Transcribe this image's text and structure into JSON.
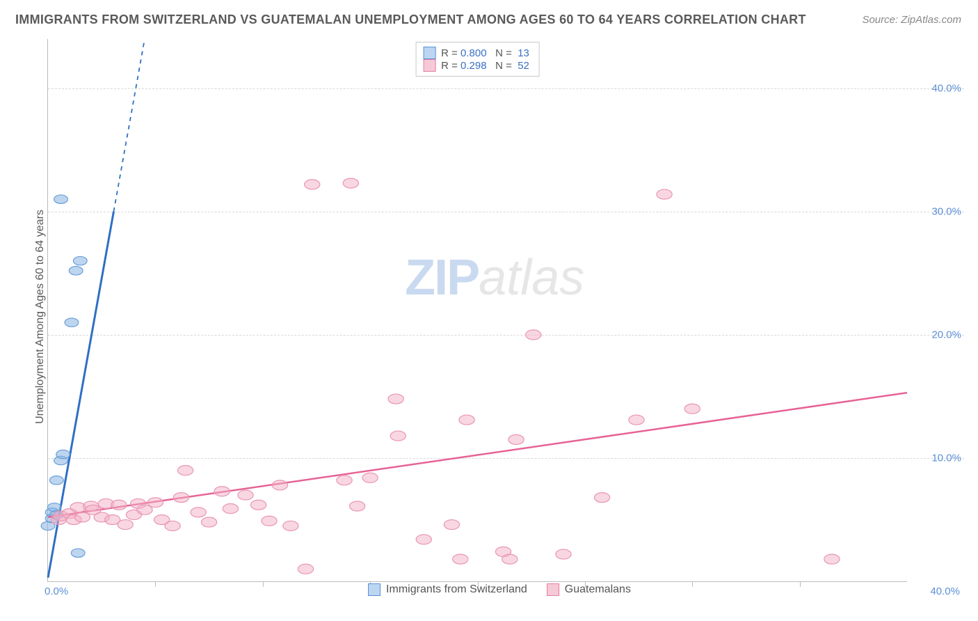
{
  "title": "IMMIGRANTS FROM SWITZERLAND VS GUATEMALAN UNEMPLOYMENT AMONG AGES 60 TO 64 YEARS CORRELATION CHART",
  "source": "Source: ZipAtlas.com",
  "ylabel": "Unemployment Among Ages 60 to 64 years",
  "watermark_zip": "ZIP",
  "watermark_atlas": "atlas",
  "chart": {
    "type": "scatter",
    "x_min": 0,
    "x_max": 40,
    "y_min": 0,
    "y_max": 44,
    "x_tick_min_label": "0.0%",
    "x_tick_max_label": "40.0%",
    "y_ticks": [
      10,
      20,
      30,
      40
    ],
    "y_tick_labels": [
      "10.0%",
      "20.0%",
      "30.0%",
      "40.0%"
    ],
    "x_tick_marks": [
      5,
      10,
      15,
      20,
      25,
      30,
      35
    ],
    "grid_color": "#d8d8d8",
    "axis_color": "#bbbbbb",
    "background": "#ffffff"
  },
  "legend_top": [
    {
      "swatch_fill": "#bcd6f2",
      "swatch_border": "#5a8fd6",
      "r_label": "R = ",
      "r_val": "0.800",
      "n_label": "   N =  ",
      "n_val": "13"
    },
    {
      "swatch_fill": "#f6c9d6",
      "swatch_border": "#e37fa2",
      "r_label": "R = ",
      "r_val": "0.298",
      "n_label": "   N =  ",
      "n_val": "52"
    }
  ],
  "legend_bottom": [
    {
      "swatch_fill": "#bcd6f2",
      "swatch_border": "#5a8fd6",
      "label": "Immigrants from Switzerland"
    },
    {
      "swatch_fill": "#f6c9d6",
      "swatch_border": "#e37fa2",
      "label": "Guatemalans"
    }
  ],
  "series": [
    {
      "name": "swiss",
      "marker_fill": "rgba(137,179,226,0.55)",
      "marker_stroke": "#6a9fd8",
      "marker_r": 8,
      "line_color": "#2f6fc4",
      "line_width": 3,
      "line_dash_after_y": 30,
      "trend": {
        "x1": 0,
        "y1": 0.3,
        "x2": 4.5,
        "y2": 44
      },
      "points": [
        [
          0.0,
          4.5
        ],
        [
          0.2,
          5.1
        ],
        [
          0.2,
          5.6
        ],
        [
          0.3,
          6.0
        ],
        [
          0.4,
          5.4
        ],
        [
          0.4,
          8.2
        ],
        [
          0.6,
          9.8
        ],
        [
          0.7,
          10.3
        ],
        [
          1.1,
          21.0
        ],
        [
          1.3,
          25.2
        ],
        [
          1.5,
          26.0
        ],
        [
          0.6,
          31.0
        ],
        [
          1.4,
          2.3
        ]
      ]
    },
    {
      "name": "guatemalan",
      "marker_fill": "rgba(242,176,197,0.5)",
      "marker_stroke": "#e995b3",
      "marker_r": 9,
      "line_color": "#e66395",
      "line_width": 2.5,
      "trend": {
        "x1": 0,
        "y1": 5.2,
        "x2": 40,
        "y2": 15.3
      },
      "points": [
        [
          0.5,
          5.0
        ],
        [
          0.6,
          5.3
        ],
        [
          1.0,
          5.5
        ],
        [
          1.2,
          5.0
        ],
        [
          1.4,
          6.0
        ],
        [
          1.6,
          5.2
        ],
        [
          2.0,
          6.1
        ],
        [
          2.1,
          5.8
        ],
        [
          2.5,
          5.2
        ],
        [
          2.7,
          6.3
        ],
        [
          3.0,
          5.0
        ],
        [
          3.3,
          6.2
        ],
        [
          3.6,
          4.6
        ],
        [
          4.0,
          5.4
        ],
        [
          4.2,
          6.3
        ],
        [
          4.5,
          5.8
        ],
        [
          5.0,
          6.4
        ],
        [
          5.3,
          5.0
        ],
        [
          5.8,
          4.5
        ],
        [
          6.2,
          6.8
        ],
        [
          6.4,
          9.0
        ],
        [
          7.0,
          5.6
        ],
        [
          7.5,
          4.8
        ],
        [
          8.1,
          7.3
        ],
        [
          8.5,
          5.9
        ],
        [
          9.2,
          7.0
        ],
        [
          9.8,
          6.2
        ],
        [
          10.3,
          4.9
        ],
        [
          10.8,
          7.8
        ],
        [
          11.3,
          4.5
        ],
        [
          12.0,
          1.0
        ],
        [
          12.3,
          32.2
        ],
        [
          13.8,
          8.2
        ],
        [
          14.1,
          32.3
        ],
        [
          14.4,
          6.1
        ],
        [
          15.0,
          8.4
        ],
        [
          16.2,
          14.8
        ],
        [
          16.3,
          11.8
        ],
        [
          17.5,
          3.4
        ],
        [
          18.8,
          4.6
        ],
        [
          19.2,
          1.8
        ],
        [
          19.5,
          13.1
        ],
        [
          21.2,
          2.4
        ],
        [
          21.5,
          1.8
        ],
        [
          21.8,
          11.5
        ],
        [
          22.6,
          20.0
        ],
        [
          24.0,
          2.2
        ],
        [
          25.8,
          6.8
        ],
        [
          27.4,
          13.1
        ],
        [
          28.7,
          31.4
        ],
        [
          30.0,
          14.0
        ],
        [
          36.5,
          1.8
        ]
      ]
    }
  ]
}
